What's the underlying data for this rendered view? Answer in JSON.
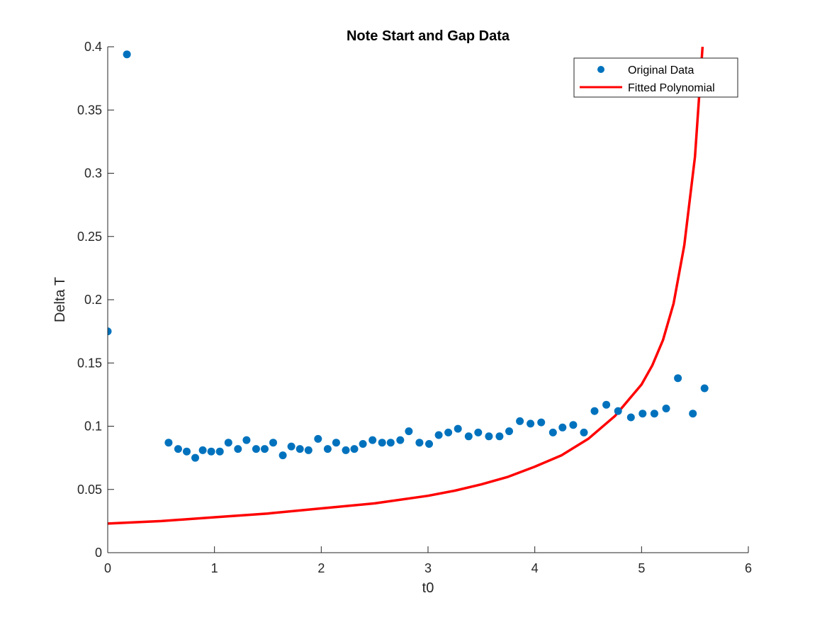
{
  "chart_data": {
    "type": "scatter",
    "title": "Note Start and Gap Data",
    "xlabel": "t0",
    "ylabel": "Delta T",
    "xlim": [
      0,
      6
    ],
    "ylim": [
      0,
      0.4
    ],
    "xticks": [
      0,
      1,
      2,
      3,
      4,
      5,
      6
    ],
    "xtick_labels": [
      "0",
      "1",
      "2",
      "3",
      "4",
      "5",
      "6"
    ],
    "yticks": [
      0,
      0.05,
      0.1,
      0.15,
      0.2,
      0.25,
      0.3,
      0.35,
      0.4
    ],
    "ytick_labels": [
      "0",
      "0.05",
      "0.1",
      "0.15",
      "0.2",
      "0.25",
      "0.3",
      "0.35",
      "0.4"
    ],
    "grid": false,
    "legend_position": "top-right",
    "series": [
      {
        "name": "Original Data",
        "kind": "markers",
        "color": "#0072BD",
        "x": [
          0.0,
          0.18,
          0.57,
          0.66,
          0.74,
          0.82,
          0.89,
          0.97,
          1.05,
          1.13,
          1.22,
          1.3,
          1.39,
          1.47,
          1.55,
          1.64,
          1.72,
          1.8,
          1.88,
          1.97,
          2.06,
          2.14,
          2.23,
          2.31,
          2.39,
          2.48,
          2.57,
          2.65,
          2.74,
          2.82,
          2.92,
          3.01,
          3.1,
          3.19,
          3.28,
          3.38,
          3.47,
          3.57,
          3.67,
          3.76,
          3.86,
          3.96,
          4.06,
          4.17,
          4.26,
          4.36,
          4.46,
          4.56,
          4.67,
          4.78,
          4.9,
          5.01,
          5.12,
          5.23,
          5.34,
          5.48,
          5.59
        ],
        "y": [
          0.175,
          0.394,
          0.087,
          0.082,
          0.08,
          0.075,
          0.081,
          0.08,
          0.08,
          0.087,
          0.082,
          0.089,
          0.082,
          0.082,
          0.087,
          0.077,
          0.084,
          0.082,
          0.081,
          0.09,
          0.082,
          0.087,
          0.081,
          0.082,
          0.086,
          0.089,
          0.087,
          0.087,
          0.089,
          0.096,
          0.087,
          0.086,
          0.093,
          0.095,
          0.098,
          0.092,
          0.095,
          0.092,
          0.092,
          0.096,
          0.104,
          0.102,
          0.103,
          0.095,
          0.099,
          0.101,
          0.095,
          0.112,
          0.117,
          0.112,
          0.107,
          0.11,
          0.11,
          0.114,
          0.138,
          0.11,
          0.13
        ]
      },
      {
        "name": "Fitted Polynomial",
        "kind": "line",
        "color": "#FF0000",
        "x": [
          0.0,
          0.5,
          1.0,
          1.5,
          2.0,
          2.5,
          3.0,
          3.25,
          3.5,
          3.75,
          4.0,
          4.25,
          4.5,
          4.75,
          5.0,
          5.1,
          5.2,
          5.3,
          5.4,
          5.5,
          5.6
        ],
        "y": [
          0.023,
          0.025,
          0.028,
          0.031,
          0.035,
          0.039,
          0.045,
          0.049,
          0.054,
          0.06,
          0.068,
          0.077,
          0.09,
          0.108,
          0.133,
          0.148,
          0.168,
          0.197,
          0.243,
          0.313,
          0.435
        ]
      }
    ]
  }
}
